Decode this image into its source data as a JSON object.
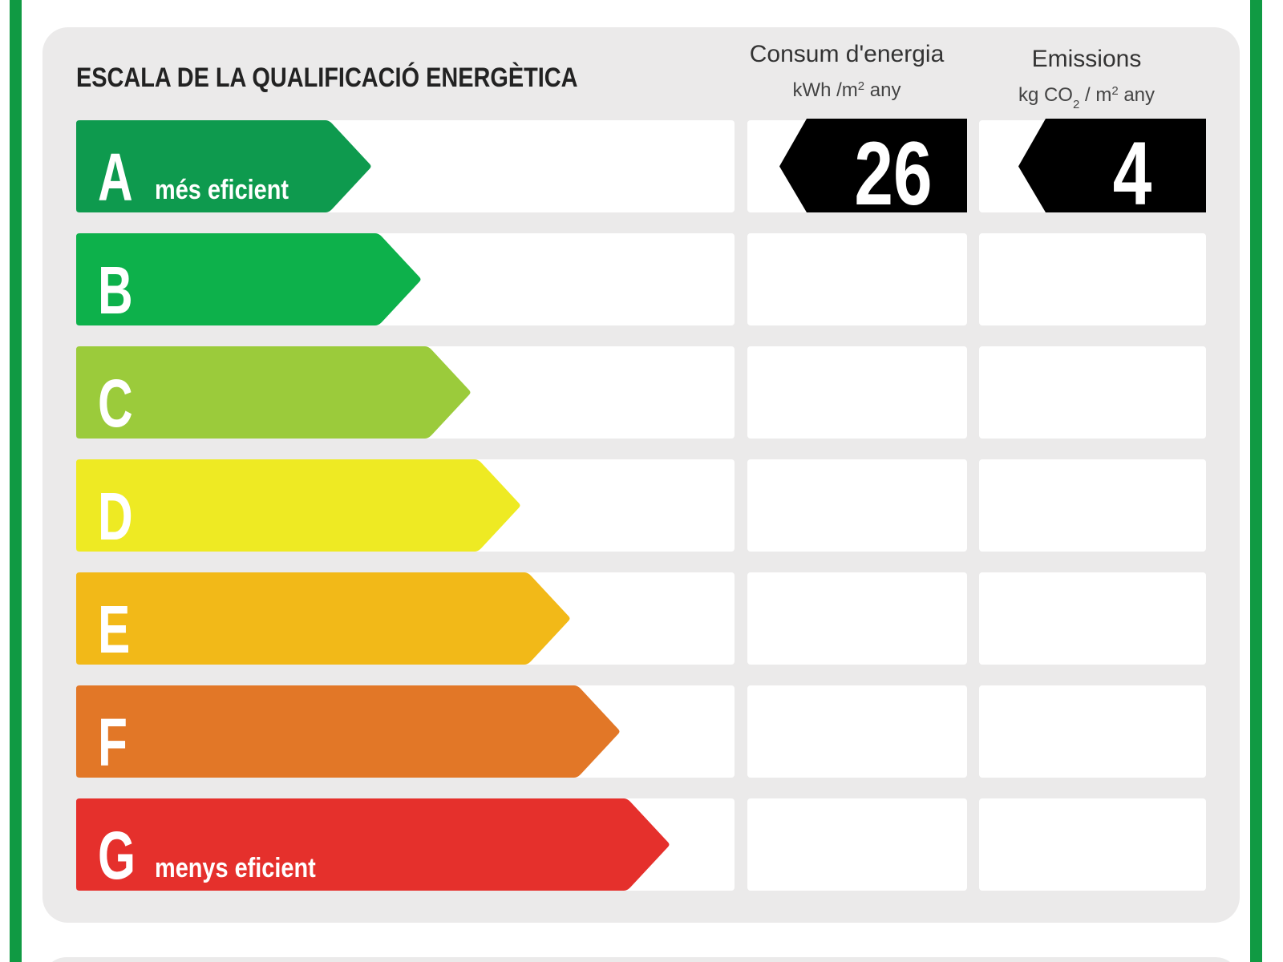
{
  "header": {
    "title": "ESCALA DE LA QUALIFICACIÓ ENERGÈTICA",
    "energy": {
      "label": "Consum d'energia",
      "unit": [
        {
          "text": "kWh /m"
        },
        {
          "text": "2",
          "pos": "sup"
        },
        {
          "text": "  any"
        }
      ]
    },
    "emissions": {
      "label": "Emissions",
      "unit": [
        {
          "text": "kg CO"
        },
        {
          "text": "2",
          "pos": "sub"
        },
        {
          "text": "  / m"
        },
        {
          "text": "2",
          "pos": "sup"
        },
        {
          "text": "  any"
        }
      ]
    }
  },
  "rows": [
    {
      "letter": "A",
      "color": "#0e9a4e",
      "note": "més eficient",
      "energy": 26,
      "emissions": 4
    },
    {
      "letter": "B",
      "color": "#0db14b"
    },
    {
      "letter": "C",
      "color": "#9bcb3b"
    },
    {
      "letter": "D",
      "color": "#eeea23"
    },
    {
      "letter": "E",
      "color": "#f2b918"
    },
    {
      "letter": "F",
      "color": "#e27727"
    },
    {
      "letter": "G",
      "color": "#e5302c",
      "note": "menys eficient"
    }
  ]
}
